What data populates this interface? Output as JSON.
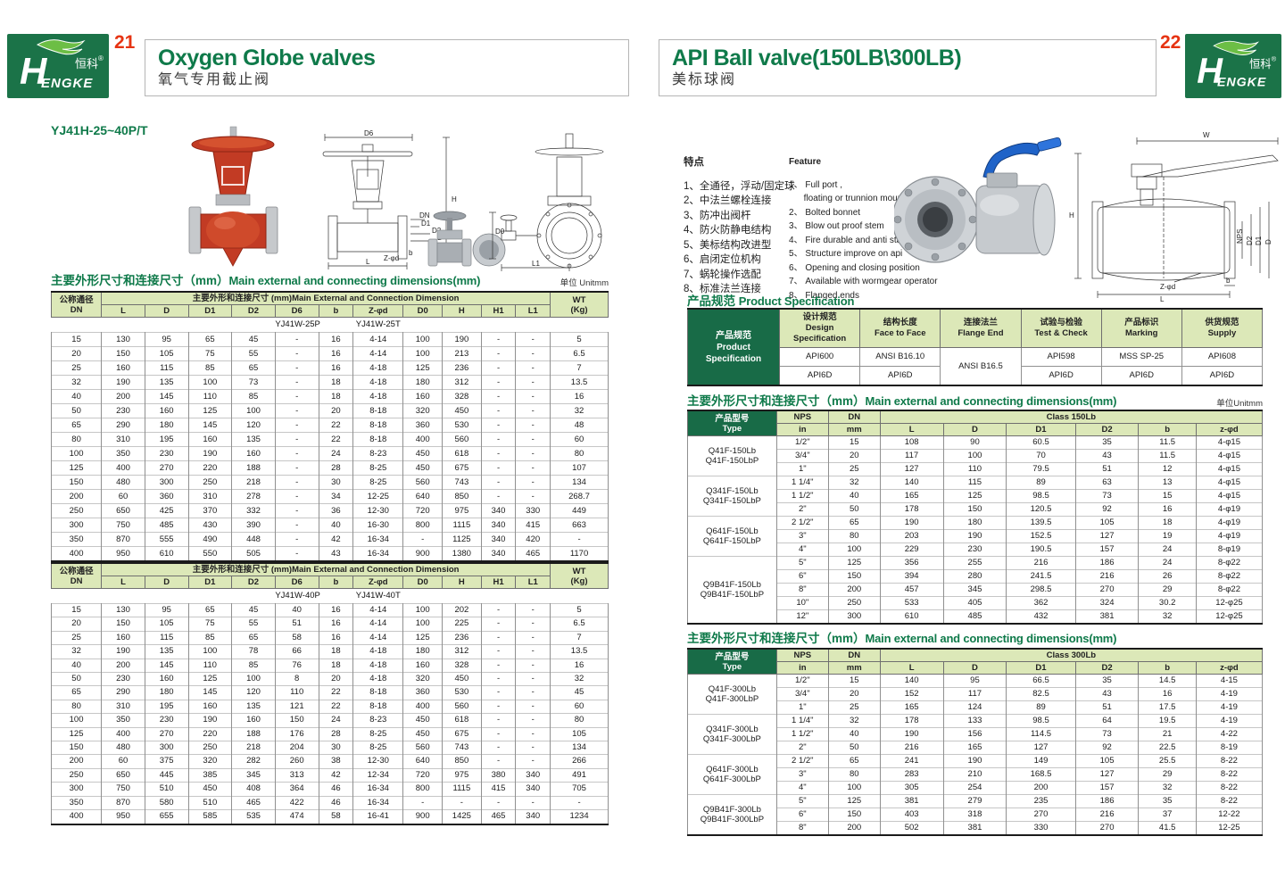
{
  "brand": {
    "logo_h": "H",
    "logo_engke": "ENGKE",
    "logo_zh": "恒科",
    "reg": "®",
    "green": "#1b7348",
    "leaf_green": "#6cbe45"
  },
  "header": {
    "left": {
      "page": "21",
      "title": "Oxygen Globe valves",
      "subtitle": "氧气专用截止阀"
    },
    "right": {
      "page": "22",
      "title": "API Ball valve(150LB\\300LB)",
      "subtitle": "美标球阀"
    }
  },
  "left_page": {
    "model": "YJ41H-25~40P/T",
    "section_title_zh": "主要外形尺寸和连接尺寸（mm）",
    "section_title_en": "Main external and connecting dimensions(mm)",
    "unit": "单位 Unitmm",
    "table_head": {
      "dn_zh": "公称通径",
      "dn": "DN",
      "span": "主要外形和连接尺寸 (mm)Main External and Connection Dimension",
      "wt": "WT",
      "wt2": "(Kg)",
      "cols": [
        "L",
        "D",
        "D1",
        "D2",
        "D6",
        "b",
        "Z-φd",
        "D0",
        "H",
        "H1",
        "L1"
      ]
    },
    "table1": {
      "model_p": "YJ41W-25P",
      "model_t": "YJ41W-25T",
      "rows": [
        [
          "15",
          "130",
          "95",
          "65",
          "45",
          "-",
          "16",
          "4-14",
          "100",
          "190",
          "-",
          "-",
          "5"
        ],
        [
          "20",
          "150",
          "105",
          "75",
          "55",
          "-",
          "16",
          "4-14",
          "100",
          "213",
          "-",
          "-",
          "6.5"
        ],
        [
          "25",
          "160",
          "115",
          "85",
          "65",
          "-",
          "16",
          "4-18",
          "125",
          "236",
          "-",
          "-",
          "7"
        ],
        [
          "32",
          "190",
          "135",
          "100",
          "73",
          "-",
          "18",
          "4-18",
          "180",
          "312",
          "-",
          "-",
          "13.5"
        ],
        [
          "40",
          "200",
          "145",
          "110",
          "85",
          "-",
          "18",
          "4-18",
          "160",
          "328",
          "-",
          "-",
          "16"
        ],
        [
          "50",
          "230",
          "160",
          "125",
          "100",
          "-",
          "20",
          "8-18",
          "320",
          "450",
          "-",
          "-",
          "32"
        ],
        [
          "65",
          "290",
          "180",
          "145",
          "120",
          "-",
          "22",
          "8-18",
          "360",
          "530",
          "-",
          "-",
          "48"
        ],
        [
          "80",
          "310",
          "195",
          "160",
          "135",
          "-",
          "22",
          "8-18",
          "400",
          "560",
          "-",
          "-",
          "60"
        ],
        [
          "100",
          "350",
          "230",
          "190",
          "160",
          "-",
          "24",
          "8-23",
          "450",
          "618",
          "-",
          "-",
          "80"
        ],
        [
          "125",
          "400",
          "270",
          "220",
          "188",
          "-",
          "28",
          "8-25",
          "450",
          "675",
          "-",
          "-",
          "107"
        ],
        [
          "150",
          "480",
          "300",
          "250",
          "218",
          "-",
          "30",
          "8-25",
          "560",
          "743",
          "-",
          "-",
          "134"
        ],
        [
          "200",
          "60",
          "360",
          "310",
          "278",
          "-",
          "34",
          "12-25",
          "640",
          "850",
          "-",
          "-",
          "268.7"
        ],
        [
          "250",
          "650",
          "425",
          "370",
          "332",
          "-",
          "36",
          "12-30",
          "720",
          "975",
          "340",
          "330",
          "449"
        ],
        [
          "300",
          "750",
          "485",
          "430",
          "390",
          "-",
          "40",
          "16-30",
          "800",
          "1115",
          "340",
          "415",
          "663"
        ],
        [
          "350",
          "870",
          "555",
          "490",
          "448",
          "-",
          "42",
          "16-34",
          "-",
          "1125",
          "340",
          "420",
          "-"
        ],
        [
          "400",
          "950",
          "610",
          "550",
          "505",
          "-",
          "43",
          "16-34",
          "900",
          "1380",
          "340",
          "465",
          "1170"
        ]
      ]
    },
    "table2": {
      "model_p": "YJ41W-40P",
      "model_t": "YJ41W-40T",
      "rows": [
        [
          "15",
          "130",
          "95",
          "65",
          "45",
          "40",
          "16",
          "4-14",
          "100",
          "202",
          "-",
          "-",
          "5"
        ],
        [
          "20",
          "150",
          "105",
          "75",
          "55",
          "51",
          "16",
          "4-14",
          "100",
          "225",
          "-",
          "-",
          "6.5"
        ],
        [
          "25",
          "160",
          "115",
          "85",
          "65",
          "58",
          "16",
          "4-14",
          "125",
          "236",
          "-",
          "-",
          "7"
        ],
        [
          "32",
          "190",
          "135",
          "100",
          "78",
          "66",
          "18",
          "4-18",
          "180",
          "312",
          "-",
          "-",
          "13.5"
        ],
        [
          "40",
          "200",
          "145",
          "110",
          "85",
          "76",
          "18",
          "4-18",
          "160",
          "328",
          "-",
          "-",
          "16"
        ],
        [
          "50",
          "230",
          "160",
          "125",
          "100",
          "8",
          "20",
          "4-18",
          "320",
          "450",
          "-",
          "-",
          "32"
        ],
        [
          "65",
          "290",
          "180",
          "145",
          "120",
          "110",
          "22",
          "8-18",
          "360",
          "530",
          "-",
          "-",
          "45"
        ],
        [
          "80",
          "310",
          "195",
          "160",
          "135",
          "121",
          "22",
          "8-18",
          "400",
          "560",
          "-",
          "-",
          "60"
        ],
        [
          "100",
          "350",
          "230",
          "190",
          "160",
          "150",
          "24",
          "8-23",
          "450",
          "618",
          "-",
          "-",
          "80"
        ],
        [
          "125",
          "400",
          "270",
          "220",
          "188",
          "176",
          "28",
          "8-25",
          "450",
          "675",
          "-",
          "-",
          "105"
        ],
        [
          "150",
          "480",
          "300",
          "250",
          "218",
          "204",
          "30",
          "8-25",
          "560",
          "743",
          "-",
          "-",
          "134"
        ],
        [
          "200",
          "60",
          "375",
          "320",
          "282",
          "260",
          "38",
          "12-30",
          "640",
          "850",
          "-",
          "-",
          "266"
        ],
        [
          "250",
          "650",
          "445",
          "385",
          "345",
          "313",
          "42",
          "12-34",
          "720",
          "975",
          "380",
          "340",
          "491"
        ],
        [
          "300",
          "750",
          "510",
          "450",
          "408",
          "364",
          "46",
          "16-34",
          "800",
          "1115",
          "415",
          "340",
          "705"
        ],
        [
          "350",
          "870",
          "580",
          "510",
          "465",
          "422",
          "46",
          "16-34",
          "-",
          "-",
          "-",
          "-",
          "-"
        ],
        [
          "400",
          "950",
          "655",
          "585",
          "535",
          "474",
          "58",
          "16-41",
          "900",
          "1425",
          "465",
          "340",
          "1234"
        ]
      ]
    }
  },
  "right_page": {
    "features_zh": {
      "title": "特点",
      "items": [
        "1、全通径，浮动/固定球",
        "2、中法兰螺栓连接",
        "3、防冲出阀杆",
        "4、防火防静电结构",
        "5、美标结构改进型",
        "6、启闭定位机构",
        "7、蜗轮操作选配",
        "8、标准法兰连接"
      ]
    },
    "features_en": {
      "title": "Feature",
      "items": [
        "1、 Full port ,",
        "      floating or trunnion mounte type",
        "2、 Bolted bonnet",
        "3、 Blow out proof stem",
        "4、 Fire durable and anti static safety",
        "5、 Structure improve on api",
        "6、 Opening and closing position",
        "7、 Available with wormgear operator",
        "8、 Flanged ends"
      ]
    },
    "spec": {
      "title_zh": "产品规范",
      "title_en": "Product Specification",
      "head_zh": "产品规范",
      "head_en1": "Product",
      "head_en2": "Specification",
      "cols": [
        {
          "zh": "设计规范",
          "en": "Design Specification"
        },
        {
          "zh": "结构长度",
          "en": "Face to Face"
        },
        {
          "zh": "连接法兰",
          "en": "Flange End"
        },
        {
          "zh": "试验与检验",
          "en": "Test & Check"
        },
        {
          "zh": "产品标识",
          "en": "Marking"
        },
        {
          "zh": "供货规范",
          "en": "Supply"
        }
      ],
      "row1": [
        "API600",
        "ANSI B16.10",
        "ANSI B16.5",
        "API598",
        "MSS SP-25",
        "API608"
      ],
      "row2": [
        "API6D",
        "API6D",
        "API6D",
        "API6D",
        "API6D"
      ]
    },
    "dim_title_zh": "主要外形尺寸和连接尺寸（mm）",
    "dim_title_en": "Main external and connecting dimensions(mm)",
    "unit": "单位Unitmm",
    "dim150": {
      "type_zh": "产品型号",
      "type_en": "Type",
      "nps": "NPS",
      "dn": "DN",
      "class_label": "Class 150Lb",
      "in": "in",
      "mm": "mm",
      "cols": [
        "L",
        "D",
        "D1",
        "D2",
        "b",
        "z-φd"
      ],
      "groups": [
        {
          "label": [
            "Q41F-150Lb",
            "Q41F-150LbP"
          ],
          "rows": [
            [
              "1/2\"",
              "15",
              "108",
              "90",
              "60.5",
              "35",
              "11.5",
              "4-φ15"
            ],
            [
              "3/4\"",
              "20",
              "117",
              "100",
              "70",
              "43",
              "11.5",
              "4-φ15"
            ],
            [
              "1\"",
              "25",
              "127",
              "110",
              "79.5",
              "51",
              "12",
              "4-φ15"
            ]
          ]
        },
        {
          "label": [
            "Q341F-150Lb",
            "Q341F-150LbP"
          ],
          "rows": [
            [
              "1 1/4\"",
              "32",
              "140",
              "115",
              "89",
              "63",
              "13",
              "4-φ15"
            ],
            [
              "1 1/2\"",
              "40",
              "165",
              "125",
              "98.5",
              "73",
              "15",
              "4-φ15"
            ],
            [
              "2\"",
              "50",
              "178",
              "150",
              "120.5",
              "92",
              "16",
              "4-φ19"
            ]
          ]
        },
        {
          "label": [
            "Q641F-150Lb",
            "Q641F-150LbP"
          ],
          "rows": [
            [
              "2 1/2\"",
              "65",
              "190",
              "180",
              "139.5",
              "105",
              "18",
              "4-φ19"
            ],
            [
              "3\"",
              "80",
              "203",
              "190",
              "152.5",
              "127",
              "19",
              "4-φ19"
            ],
            [
              "4\"",
              "100",
              "229",
              "230",
              "190.5",
              "157",
              "24",
              "8-φ19"
            ]
          ]
        },
        {
          "label": [
            "Q9B41F-150Lb",
            "Q9B41F-150LbP"
          ],
          "rows": [
            [
              "5\"",
              "125",
              "356",
              "255",
              "216",
              "186",
              "24",
              "8-φ22"
            ],
            [
              "6\"",
              "150",
              "394",
              "280",
              "241.5",
              "216",
              "26",
              "8-φ22"
            ],
            [
              "8\"",
              "200",
              "457",
              "345",
              "298.5",
              "270",
              "29",
              "8-φ22"
            ],
            [
              "10\"",
              "250",
              "533",
              "405",
              "362",
              "324",
              "30.2",
              "12-φ25"
            ],
            [
              "12\"",
              "300",
              "610",
              "485",
              "432",
              "381",
              "32",
              "12-φ25"
            ]
          ]
        }
      ]
    },
    "dim300": {
      "type_zh": "产品型号",
      "type_en": "Type",
      "nps": "NPS",
      "dn": "DN",
      "class_label": "Class 300Lb",
      "in": "in",
      "mm": "mm",
      "cols": [
        "L",
        "D",
        "D1",
        "D2",
        "b",
        "z-φd"
      ],
      "groups": [
        {
          "label": [
            "Q41F-300Lb",
            "Q41F-300LbP"
          ],
          "rows": [
            [
              "1/2\"",
              "15",
              "140",
              "95",
              "66.5",
              "35",
              "14.5",
              "4-15"
            ],
            [
              "3/4\"",
              "20",
              "152",
              "117",
              "82.5",
              "43",
              "16",
              "4-19"
            ],
            [
              "1\"",
              "25",
              "165",
              "124",
              "89",
              "51",
              "17.5",
              "4-19"
            ]
          ]
        },
        {
          "label": [
            "Q341F-300Lb",
            "Q341F-300LbP"
          ],
          "rows": [
            [
              "1 1/4\"",
              "32",
              "178",
              "133",
              "98.5",
              "64",
              "19.5",
              "4-19"
            ],
            [
              "1 1/2\"",
              "40",
              "190",
              "156",
              "114.5",
              "73",
              "21",
              "4-22"
            ],
            [
              "2\"",
              "50",
              "216",
              "165",
              "127",
              "92",
              "22.5",
              "8-19"
            ]
          ]
        },
        {
          "label": [
            "Q641F-300Lb",
            "Q641F-300LbP"
          ],
          "rows": [
            [
              "2 1/2\"",
              "65",
              "241",
              "190",
              "149",
              "105",
              "25.5",
              "8-22"
            ],
            [
              "3\"",
              "80",
              "283",
              "210",
              "168.5",
              "127",
              "29",
              "8-22"
            ],
            [
              "4\"",
              "100",
              "305",
              "254",
              "200",
              "157",
              "32",
              "8-22"
            ]
          ]
        },
        {
          "label": [
            "Q9B41F-300Lb",
            "Q9B41F-300LbP"
          ],
          "rows": [
            [
              "5\"",
              "125",
              "381",
              "279",
              "235",
              "186",
              "35",
              "8-22"
            ],
            [
              "6\"",
              "150",
              "403",
              "318",
              "270",
              "216",
              "37",
              "12-22"
            ],
            [
              "8\"",
              "200",
              "502",
              "381",
              "330",
              "270",
              "41.5",
              "12-25"
            ]
          ]
        }
      ]
    }
  },
  "drawings": {
    "globe_front": {
      "d6": "D6",
      "h": "H",
      "dn": "DN",
      "d1": "D1",
      "d2": "D2",
      "d": "D",
      "zfd": "Z-φd",
      "b": "b",
      "l": "L"
    },
    "globe_side": {
      "d0": "D0",
      "l1": "L1"
    },
    "ball": {
      "w": "W",
      "h": "H",
      "nps": "NPS",
      "d2": "D2",
      "d1": "D1",
      "d": "D",
      "zfd": "Z-φd",
      "b": "b",
      "l": "L"
    }
  }
}
